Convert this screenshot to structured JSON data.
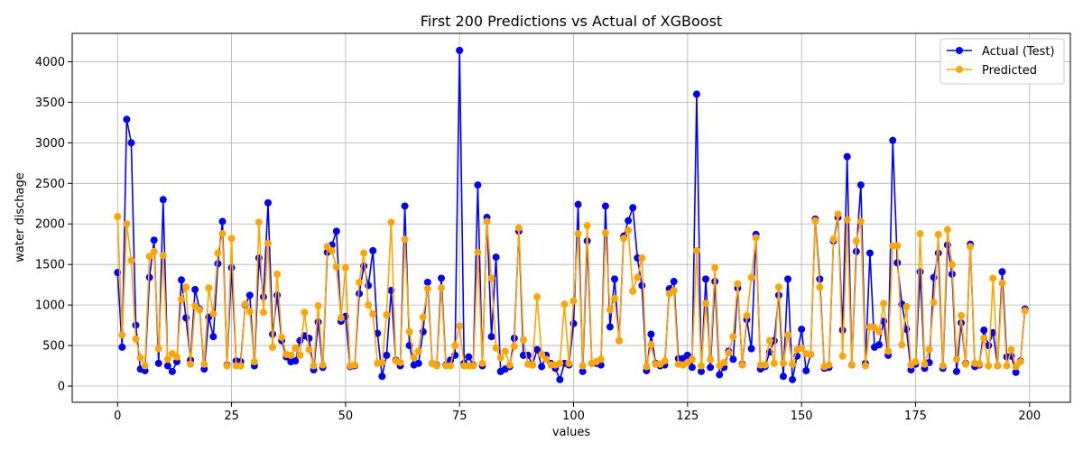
{
  "chart_data": {
    "type": "line",
    "title": "First 200 Predictions vs Actual of XGBoost",
    "xlabel": "values",
    "ylabel": "water dischage",
    "xlim": [
      -9.95,
      208.95
    ],
    "ylim": [
      -200,
      4350
    ],
    "xticks": [
      0,
      25,
      50,
      75,
      100,
      125,
      150,
      175,
      200
    ],
    "yticks": [
      0,
      500,
      1000,
      1500,
      2000,
      2500,
      3000,
      3500,
      4000
    ],
    "grid": true,
    "legend_position": "top-right",
    "series": [
      {
        "name": "Actual (Test)",
        "color": "#0000ff",
        "marker": "circle",
        "values": [
          1400,
          480,
          3290,
          3000,
          750,
          210,
          190,
          1340,
          1800,
          280,
          2300,
          250,
          180,
          300,
          1310,
          840,
          320,
          1190,
          950,
          210,
          850,
          610,
          1510,
          2030,
          260,
          1460,
          310,
          300,
          1000,
          1120,
          250,
          1580,
          1100,
          2260,
          640,
          1120,
          560,
          360,
          300,
          310,
          560,
          620,
          590,
          200,
          790,
          230,
          1650,
          1740,
          1910,
          800,
          860,
          240,
          250,
          1140,
          1480,
          1240,
          1670,
          650,
          120,
          380,
          1180,
          320,
          250,
          2220,
          500,
          260,
          280,
          670,
          1280,
          280,
          260,
          1330,
          260,
          320,
          380,
          4140,
          280,
          360,
          260,
          2480,
          250,
          2080,
          610,
          1590,
          180,
          210,
          240,
          590,
          1910,
          380,
          380,
          260,
          450,
          240,
          380,
          280,
          220,
          80,
          280,
          260,
          770,
          2240,
          180,
          1790,
          280,
          280,
          260,
          2220,
          730,
          1320,
          560,
          1850,
          2040,
          2200,
          1580,
          1240,
          190,
          640,
          280,
          250,
          260,
          1200,
          1290,
          340,
          340,
          380,
          230,
          3600,
          180,
          1320,
          230,
          1290,
          140,
          230,
          430,
          330,
          1210,
          270,
          820,
          460,
          1870,
          210,
          240,
          420,
          560,
          1120,
          120,
          1320,
          80,
          370,
          700,
          190,
          390,
          2060,
          1320,
          220,
          230,
          1790,
          2080,
          690,
          2830,
          260,
          1660,
          2480,
          280,
          1640,
          480,
          510,
          800,
          380,
          3030,
          1520,
          1010,
          700,
          200,
          270,
          1410,
          220,
          290,
          1340,
          1640,
          220,
          1740,
          1380,
          180,
          780,
          280,
          1750,
          240,
          260,
          690,
          500,
          660,
          250,
          1410,
          360,
          370,
          170,
          310,
          950
        ]
      },
      {
        "name": "Predicted",
        "color": "#ffa500",
        "marker": "circle",
        "values": [
          2090,
          630,
          2000,
          1550,
          580,
          350,
          250,
          1600,
          1660,
          460,
          1610,
          330,
          400,
          360,
          1070,
          1220,
          270,
          990,
          940,
          270,
          1210,
          890,
          1640,
          1880,
          250,
          1820,
          250,
          250,
          1010,
          920,
          300,
          2020,
          910,
          1760,
          480,
          1380,
          600,
          390,
          380,
          470,
          380,
          910,
          450,
          250,
          990,
          260,
          1720,
          1670,
          1470,
          840,
          1460,
          250,
          260,
          1280,
          1640,
          1000,
          890,
          280,
          290,
          880,
          2020,
          310,
          290,
          1810,
          670,
          350,
          430,
          850,
          1200,
          280,
          250,
          1210,
          250,
          250,
          500,
          740,
          250,
          250,
          250,
          1650,
          280,
          2030,
          1330,
          470,
          350,
          430,
          260,
          490,
          1950,
          570,
          270,
          260,
          1100,
          390,
          330,
          260,
          260,
          280,
          1010,
          280,
          1050,
          1880,
          250,
          1980,
          280,
          300,
          330,
          1890,
          940,
          1080,
          560,
          1820,
          1920,
          1170,
          1340,
          1580,
          240,
          510,
          270,
          270,
          310,
          1140,
          1180,
          270,
          260,
          290,
          330,
          1670,
          250,
          1020,
          330,
          1460,
          250,
          290,
          410,
          610,
          1260,
          260,
          870,
          1340,
          1830,
          260,
          260,
          560,
          280,
          1220,
          280,
          630,
          270,
          450,
          470,
          400,
          390,
          2040,
          1220,
          240,
          260,
          1810,
          2120,
          370,
          2050,
          260,
          1790,
          2030,
          250,
          730,
          720,
          670,
          1020,
          430,
          1730,
          1730,
          510,
          980,
          260,
          300,
          1880,
          270,
          450,
          1030,
          1870,
          250,
          1930,
          1500,
          330,
          870,
          270,
          1720,
          280,
          270,
          590,
          250,
          1330,
          250,
          1270,
          250,
          450,
          240,
          300,
          930
        ]
      }
    ]
  }
}
